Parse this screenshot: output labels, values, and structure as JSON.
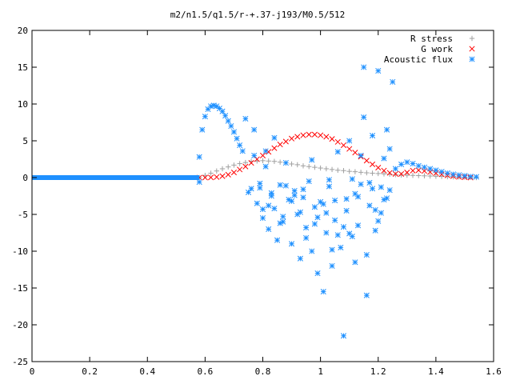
{
  "chart_data": {
    "type": "scatter",
    "title": "m2/n1.5/q1.5/r-+.37-j193/M0.5/512",
    "xlabel": "",
    "ylabel": "",
    "xlim": [
      0,
      1.6
    ],
    "ylim": [
      -25,
      20
    ],
    "x_ticks": [
      0,
      0.2,
      0.4,
      0.6,
      0.8,
      1,
      1.2,
      1.4,
      1.6
    ],
    "x_tick_labels": [
      "0",
      "0.2",
      "0.4",
      "0.6",
      "0.8",
      "1",
      "1.2",
      "1.4",
      "1.6"
    ],
    "y_ticks": [
      -25,
      -20,
      -15,
      -10,
      -5,
      0,
      5,
      10,
      15,
      20
    ],
    "y_tick_labels": [
      "-25",
      "-20",
      "-15",
      "-10",
      "-5",
      "0",
      "5",
      "10",
      "15",
      "20"
    ],
    "grid": false,
    "legend_position": "top-right",
    "series": [
      {
        "name": "R stress",
        "marker": "plus",
        "color": "#a0a0a0",
        "x": [
          0.58,
          0.6,
          0.62,
          0.64,
          0.66,
          0.68,
          0.7,
          0.72,
          0.74,
          0.76,
          0.78,
          0.8,
          0.82,
          0.84,
          0.86,
          0.88,
          0.9,
          0.92,
          0.94,
          0.96,
          0.98,
          1.0,
          1.02,
          1.04,
          1.06,
          1.08,
          1.1,
          1.12,
          1.14,
          1.16,
          1.18,
          1.2,
          1.22,
          1.24,
          1.26,
          1.28,
          1.3,
          1.32,
          1.34,
          1.36,
          1.38,
          1.4,
          1.42,
          1.44,
          1.46,
          1.48,
          1.5,
          1.52,
          1.54
        ],
        "y": [
          0.0,
          0.3,
          0.6,
          0.9,
          1.2,
          1.45,
          1.7,
          1.9,
          2.05,
          2.2,
          2.25,
          2.3,
          2.25,
          2.2,
          2.1,
          2.0,
          1.85,
          1.75,
          1.6,
          1.5,
          1.4,
          1.3,
          1.2,
          1.1,
          1.0,
          0.95,
          0.85,
          0.8,
          0.72,
          0.65,
          0.6,
          0.55,
          0.5,
          0.45,
          0.4,
          0.35,
          0.32,
          0.3,
          0.27,
          0.24,
          0.21,
          0.18,
          0.15,
          0.12,
          0.1,
          0.08,
          0.05,
          0.03,
          0.0
        ]
      },
      {
        "name": "G work",
        "marker": "cross",
        "color": "#ff0000",
        "x": [
          0.58,
          0.6,
          0.62,
          0.64,
          0.66,
          0.68,
          0.7,
          0.72,
          0.74,
          0.76,
          0.78,
          0.8,
          0.82,
          0.84,
          0.86,
          0.88,
          0.9,
          0.92,
          0.94,
          0.96,
          0.98,
          1.0,
          1.02,
          1.04,
          1.06,
          1.08,
          1.1,
          1.12,
          1.14,
          1.16,
          1.18,
          1.2,
          1.22,
          1.24,
          1.26,
          1.28,
          1.3,
          1.32,
          1.34,
          1.36,
          1.38,
          1.4,
          1.42,
          1.44,
          1.46,
          1.48,
          1.5,
          1.52
        ],
        "y": [
          0.0,
          0.0,
          0.02,
          0.08,
          0.2,
          0.4,
          0.7,
          1.1,
          1.5,
          2.0,
          2.5,
          3.0,
          3.5,
          4.0,
          4.5,
          4.9,
          5.3,
          5.55,
          5.75,
          5.85,
          5.85,
          5.75,
          5.55,
          5.25,
          4.85,
          4.4,
          3.9,
          3.4,
          2.85,
          2.3,
          1.8,
          1.35,
          0.95,
          0.65,
          0.5,
          0.5,
          0.7,
          0.95,
          1.0,
          0.9,
          0.75,
          0.6,
          0.45,
          0.3,
          0.2,
          0.1,
          0.05,
          0.0
        ]
      },
      {
        "name": "Acoustic flux",
        "marker": "star",
        "color": "#1e90ff",
        "baseline": {
          "x_start": 0.0,
          "x_end": 0.58,
          "y": 0.0
        },
        "x": [
          0.58,
          0.59,
          0.6,
          0.61,
          0.62,
          0.63,
          0.64,
          0.65,
          0.66,
          0.67,
          0.68,
          0.69,
          0.7,
          0.71,
          0.72,
          0.73,
          1.26,
          1.28,
          1.3,
          1.32,
          1.34,
          1.36,
          1.38,
          1.4,
          1.42,
          1.44,
          1.46,
          1.48,
          1.5,
          1.52,
          1.54,
          0.58,
          0.74,
          0.75,
          0.76,
          0.77,
          0.78,
          0.79,
          0.8,
          0.81,
          0.82,
          0.83,
          0.84,
          0.85,
          0.86,
          0.87,
          0.88,
          0.89,
          0.9,
          0.91,
          0.92,
          0.93,
          0.94,
          0.95,
          0.96,
          0.97,
          0.98,
          0.99,
          1.0,
          1.01,
          1.02,
          1.03,
          1.04,
          1.05,
          1.06,
          1.07,
          1.08,
          1.09,
          1.1,
          1.11,
          1.12,
          1.13,
          1.14,
          1.15,
          1.16,
          1.17,
          1.18,
          1.19,
          1.2,
          1.21,
          1.22,
          1.23,
          1.24,
          1.25,
          0.79,
          0.82,
          0.86,
          0.91,
          0.95,
          0.99,
          1.03,
          1.06,
          1.09,
          1.12,
          1.14,
          1.16,
          1.19,
          1.22,
          0.77,
          0.81,
          0.84,
          0.88,
          0.93,
          0.97,
          1.01,
          1.04,
          1.08,
          1.11,
          1.15,
          1.18,
          1.21,
          1.24,
          0.8,
          0.83,
          0.87,
          0.9,
          0.94,
          0.98,
          1.02,
          1.05,
          1.1,
          1.13,
          1.17,
          1.2,
          1.23
        ],
        "y": [
          2.8,
          6.5,
          8.3,
          9.3,
          9.7,
          9.8,
          9.7,
          9.4,
          9.0,
          8.4,
          7.7,
          7.0,
          6.2,
          5.3,
          4.4,
          3.6,
          1.2,
          1.8,
          2.1,
          1.9,
          1.6,
          1.4,
          1.2,
          1.0,
          0.8,
          0.6,
          0.45,
          0.35,
          0.25,
          0.15,
          0.1,
          -0.6,
          8.0,
          -2.0,
          -1.5,
          3.0,
          -3.5,
          -0.8,
          -5.5,
          1.5,
          -7.0,
          -2.5,
          -4.2,
          -8.5,
          -1.0,
          -6.0,
          2.0,
          -3.0,
          -9.0,
          -1.8,
          -5.0,
          -11.0,
          -2.7,
          -6.8,
          -0.5,
          -10.0,
          -4.0,
          -13.0,
          -3.3,
          -15.5,
          -7.5,
          -1.2,
          -12.0,
          -5.8,
          3.5,
          -9.5,
          -21.5,
          -4.5,
          5.0,
          -8.0,
          -2.2,
          -6.5,
          3.0,
          15.0,
          -10.5,
          -3.8,
          -1.5,
          -7.2,
          14.5,
          -4.8,
          -3.0,
          6.5,
          -1.7,
          13.0,
          -1.4,
          -3.8,
          -6.2,
          -2.4,
          -8.2,
          -5.4,
          -0.3,
          -7.8,
          -2.9,
          -11.5,
          -0.9,
          -16.0,
          -4.4,
          2.6,
          6.5,
          3.6,
          5.4,
          -1.1,
          -4.7,
          2.4,
          -3.6,
          -9.8,
          -6.7,
          -0.2,
          8.2,
          5.7,
          -1.3,
          3.9,
          -4.3,
          -2.1,
          -5.3,
          -3.2,
          -1.6,
          -6.3,
          -4.8,
          -3.1,
          -7.6,
          -2.6,
          -0.7,
          -5.9,
          -2.8
        ]
      }
    ]
  }
}
